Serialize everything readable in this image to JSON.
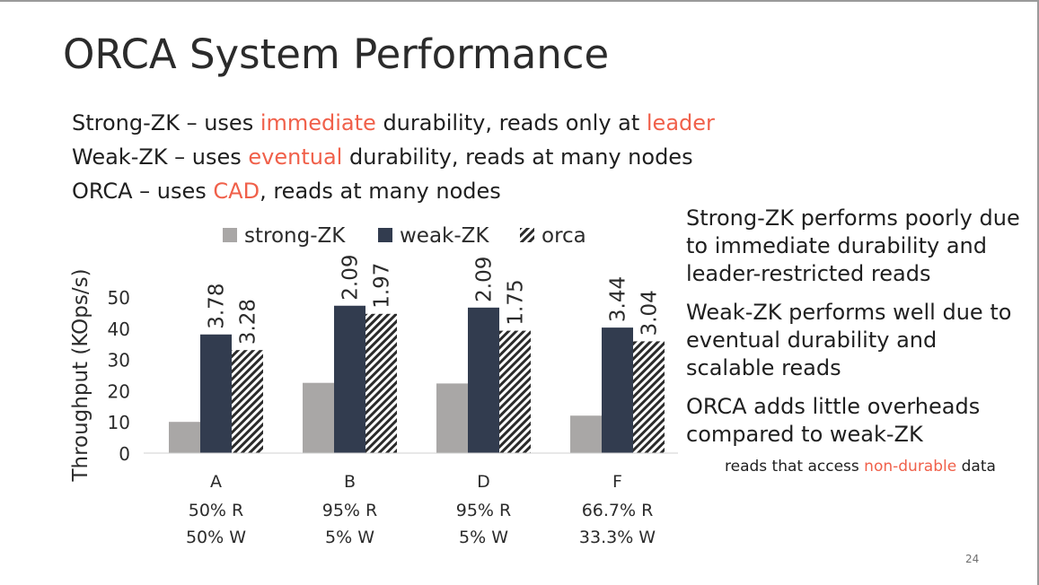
{
  "slide": {
    "title": "ORCA System Performance",
    "page_number": "24"
  },
  "bullets": [
    {
      "before": "Strong-ZK – uses ",
      "highlight": "immediate",
      "middle": " durability, reads only at ",
      "highlight2": "leader",
      "after": ""
    },
    {
      "before": "Weak-ZK – uses ",
      "highlight": "eventual",
      "middle": " durability, reads at many nodes",
      "highlight2": "",
      "after": ""
    },
    {
      "before": "ORCA – uses ",
      "highlight": "CAD",
      "middle": ", reads at many nodes",
      "highlight2": "",
      "after": ""
    }
  ],
  "notes": [
    "Strong-ZK performs poorly due to immediate durability and leader-restricted reads",
    "Weak-ZK performs well due to eventual durability and scalable reads",
    "ORCA adds little overheads compared to weak-ZK"
  ],
  "subnote": {
    "before": "reads that access ",
    "highlight": "non-durable",
    "after": " data"
  },
  "colors": {
    "highlight": "#f0604a",
    "strong": "#a9a7a6",
    "weak": "#323c4f",
    "orca_hatch": "#2b2b2b"
  },
  "chart_data": {
    "type": "bar",
    "title": "",
    "xlabel": "",
    "ylabel": "Throughput (KOps/s)",
    "ylim": [
      0,
      50
    ],
    "yticks": [
      0,
      10,
      20,
      30,
      40,
      50
    ],
    "legend_position": "top",
    "categories": [
      "A",
      "B",
      "D",
      "F"
    ],
    "category_sublabels": [
      [
        "50% R",
        "50% W"
      ],
      [
        "95% R",
        "5% W"
      ],
      [
        "95% R",
        "5% W"
      ],
      [
        "66.7% R",
        "33.3% W"
      ]
    ],
    "series": [
      {
        "name": "strong-ZK",
        "values": [
          10,
          22.5,
          22.3,
          12
        ],
        "labels": [
          "",
          "",
          "",
          ""
        ],
        "style": "solid-gray"
      },
      {
        "name": "weak-ZK",
        "values": [
          38,
          47.2,
          46.6,
          40.2
        ],
        "labels": [
          "3.78",
          "2.09",
          "2.09",
          "3.44"
        ],
        "style": "solid-dark"
      },
      {
        "name": "orca",
        "values": [
          33,
          44.6,
          39.2,
          35.8
        ],
        "labels": [
          "3.28",
          "1.97",
          "1.75",
          "3.04"
        ],
        "style": "hatched"
      }
    ]
  }
}
